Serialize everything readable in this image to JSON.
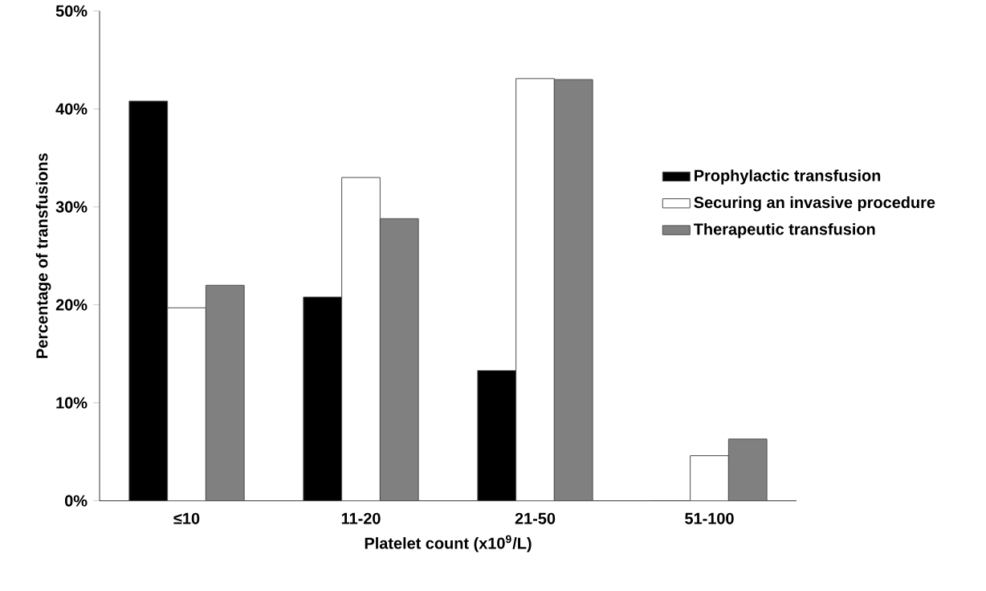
{
  "chart_data": {
    "type": "bar",
    "categories": [
      "≤10",
      "11-20",
      "21-50",
      "51-100"
    ],
    "series": [
      {
        "name": "Prophylactic transfusion",
        "color": "#000000",
        "values": [
          40.8,
          20.8,
          13.3,
          0
        ]
      },
      {
        "name": "Securing an invasive procedure",
        "color": "#ffffff",
        "values": [
          19.7,
          33.0,
          43.1,
          4.6
        ]
      },
      {
        "name": "Therapeutic transfusion",
        "color": "#808080",
        "values": [
          22.0,
          28.8,
          43.0,
          6.3
        ]
      }
    ],
    "xlabel": "Platelet count (x10$^{9}$/L)",
    "ylabel": "Percentage of transfusions",
    "ylim": [
      0,
      50
    ],
    "yticks": [
      {
        "value": 0,
        "label": "0%"
      },
      {
        "value": 10,
        "label": "10%"
      },
      {
        "value": 20,
        "label": "20%"
      },
      {
        "value": 30,
        "label": "30%"
      },
      {
        "value": 40,
        "label": "40%"
      },
      {
        "value": 50,
        "label": "50%"
      }
    ],
    "legend": "right"
  }
}
